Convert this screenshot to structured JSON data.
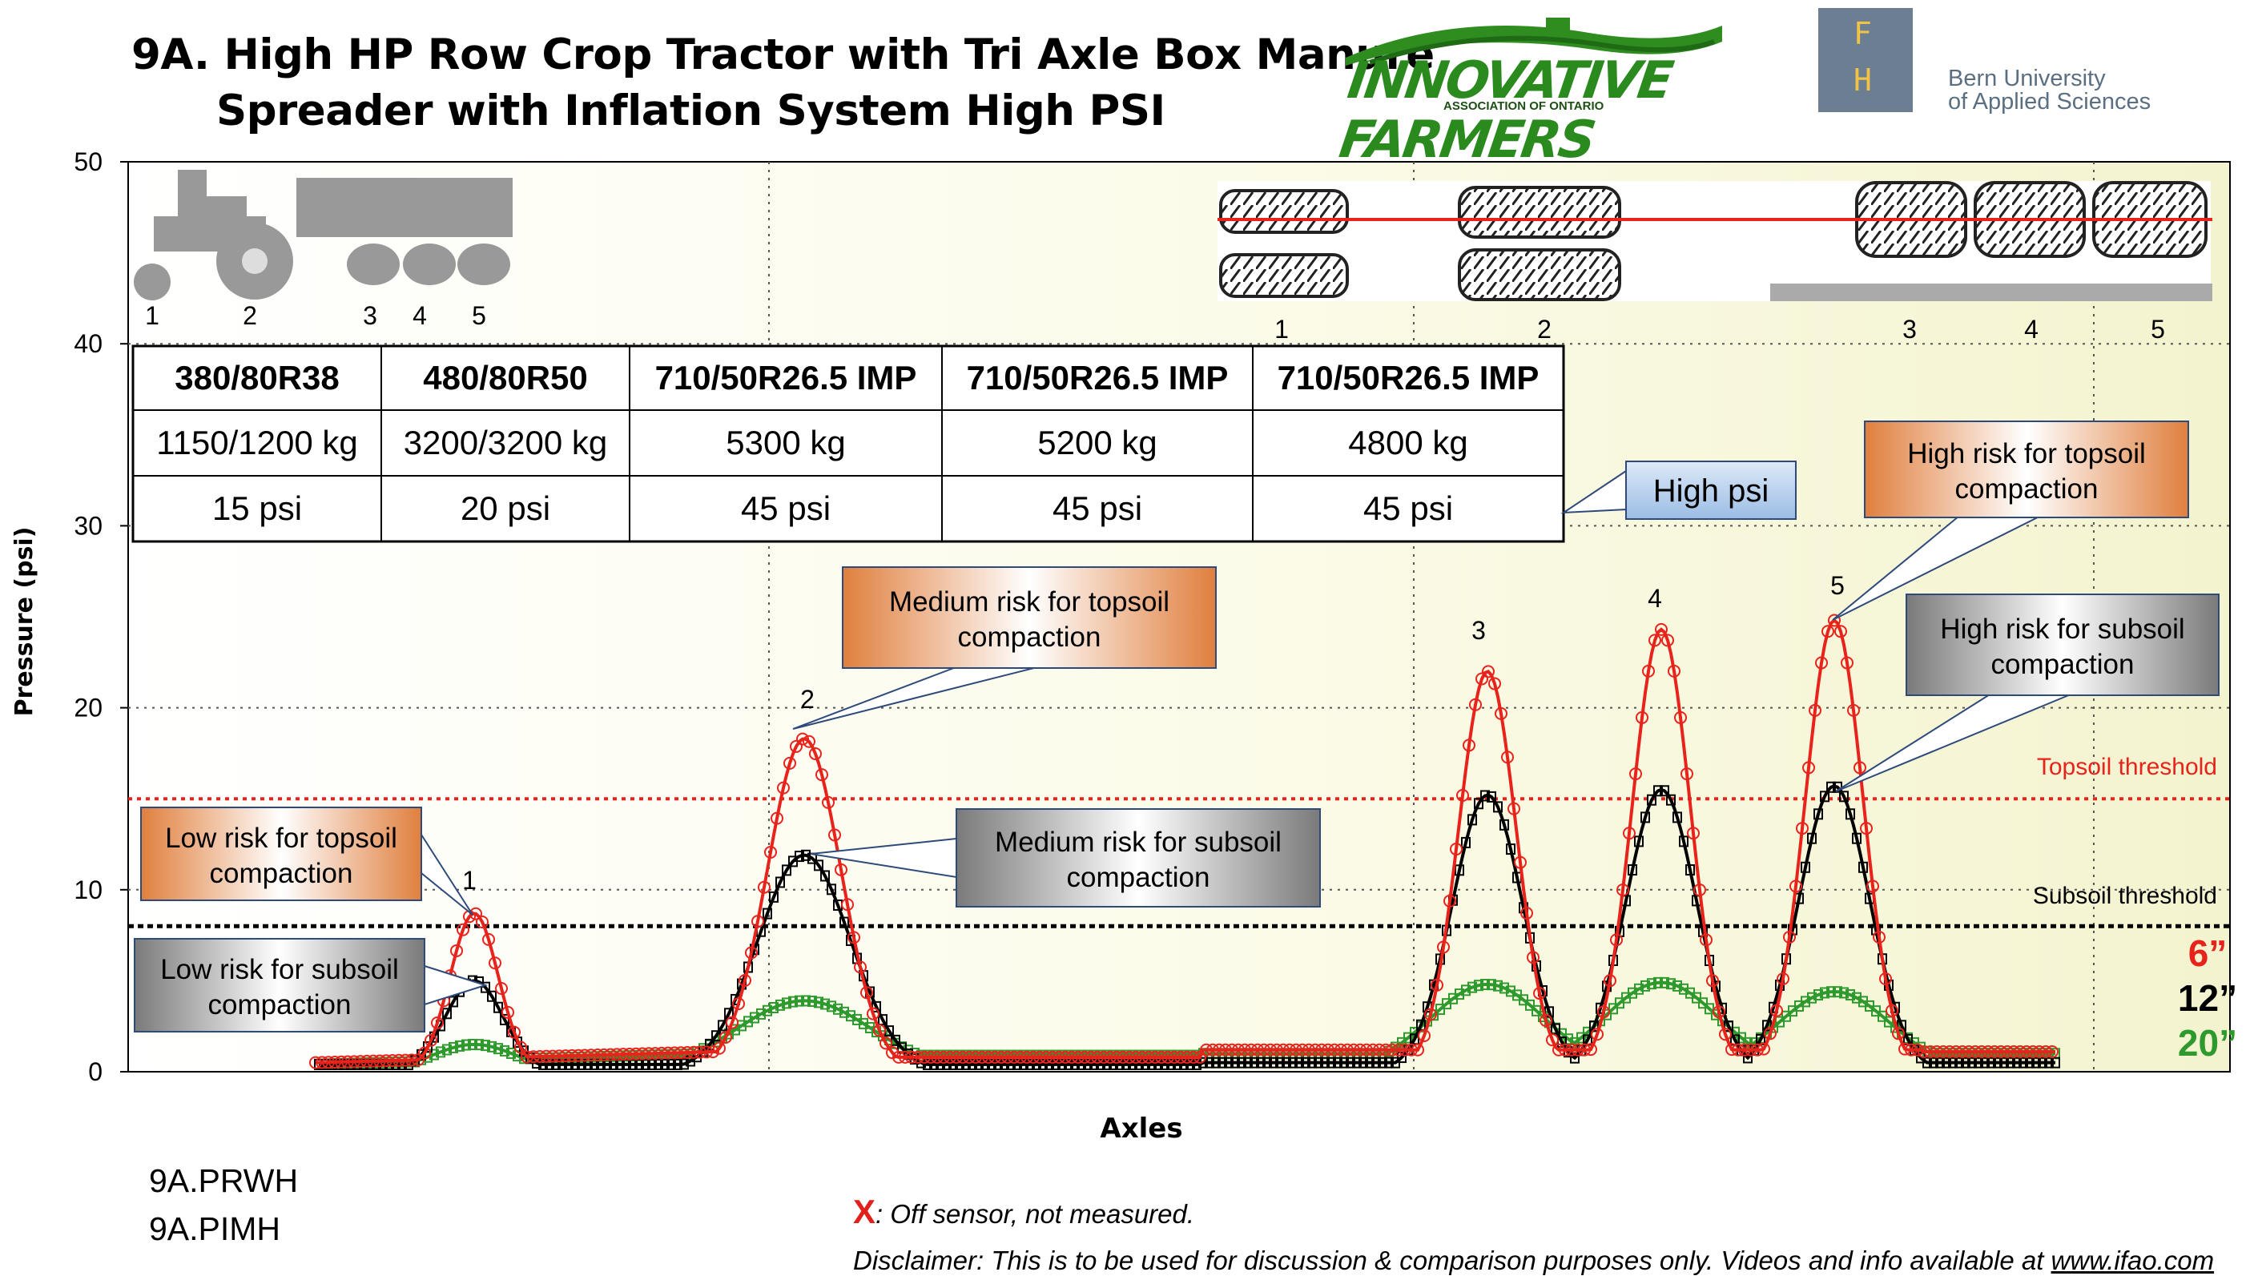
{
  "title_line1": "9A. High HP Row Crop Tractor with Tri Axle Box Manure",
  "title_line2": "Spreader with Inflation System High PSI",
  "logos": {
    "ifao_word": "INNOVATIVE FARMERS",
    "ifao_sub": "ASSOCIATION OF ONTARIO",
    "bern_letter1": "F",
    "bern_letter2": "H",
    "bern_line1": "Bern University",
    "bern_line2": "of Applied Sciences"
  },
  "chart_data": {
    "type": "line",
    "ylabel": "Pressure (psi)",
    "xlabel": "Axles",
    "ylim": [
      0,
      50
    ],
    "yticks": [
      0,
      10,
      20,
      30,
      40,
      50
    ],
    "grid": true,
    "thresholds": [
      {
        "name": "Topsoil threshold",
        "value": 15,
        "color": "#e8231c"
      },
      {
        "name": "Subsoil threshold",
        "value": 8,
        "color": "#000000"
      }
    ],
    "series": [
      {
        "name": "6”",
        "color": "#e8231c",
        "peaks": [
          8.7,
          18.3,
          22.0,
          24.3,
          24.8
        ]
      },
      {
        "name": "12”",
        "color": "#000000",
        "peaks": [
          5.0,
          11.9,
          15.2,
          15.5,
          15.7
        ]
      },
      {
        "name": "20”",
        "color": "#2e9a2e",
        "peaks": [
          1.5,
          3.9,
          4.8,
          4.9,
          4.4
        ]
      }
    ],
    "axles": [
      "1",
      "2",
      "3",
      "4",
      "5"
    ],
    "tire_table": {
      "headers": [
        "380/80R38",
        "480/80R50",
        "710/50R26.5 IMP",
        "710/50R26.5 IMP",
        "710/50R26.5 IMP"
      ],
      "loads": [
        "1150/1200 kg",
        "3200/3200 kg",
        "5300 kg",
        "5200 kg",
        "4800 kg"
      ],
      "pressures": [
        "15 psi",
        "20 psi",
        "45 psi",
        "45 psi",
        "45 psi"
      ]
    },
    "callouts": [
      {
        "text": "Low risk for topsoil compaction",
        "style": "orange"
      },
      {
        "text": "Low risk for subsoil compaction",
        "style": "gray"
      },
      {
        "text": "Medium risk for topsoil compaction",
        "style": "orange"
      },
      {
        "text": "Medium risk for subsoil compaction",
        "style": "gray"
      },
      {
        "text": "High risk for topsoil compaction",
        "style": "orange"
      },
      {
        "text": "High risk for subsoil compaction",
        "style": "gray"
      },
      {
        "text": "High psi",
        "style": "blue"
      }
    ]
  },
  "footer": {
    "id1": "9A.PRWH",
    "id2": "9A.PIMH",
    "x_mark": "X",
    "off_sensor": ": Off sensor, not measured.",
    "disclaimer": "Disclaimer: This is to be used for discussion & comparison purposes only. Videos and info available at ",
    "link": "www.ifao.com"
  }
}
